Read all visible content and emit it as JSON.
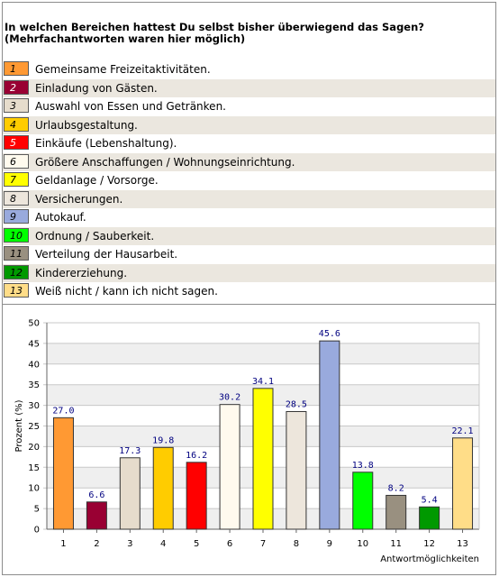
{
  "header": {
    "title_line1": "In welchen Bereichen hattest Du selbst bisher überwiegend das Sagen?",
    "title_line2": "(Mehrfachantworten waren hier möglich)"
  },
  "legend": [
    {
      "num": "1",
      "label": "Gemeinsame Freizeitaktivitäten.",
      "color": "#ff9933",
      "numColor": "#000000"
    },
    {
      "num": "2",
      "label": "Einladung von Gästen.",
      "color": "#990033",
      "numColor": "#ffffff"
    },
    {
      "num": "3",
      "label": "Auswahl von Essen und Getränken.",
      "color": "#e6dccc",
      "numColor": "#000000"
    },
    {
      "num": "4",
      "label": "Urlaubsgestaltung.",
      "color": "#ffcc00",
      "numColor": "#000000"
    },
    {
      "num": "5",
      "label": "Einkäufe (Lebenshaltung).",
      "color": "#ff0000",
      "numColor": "#ffffff"
    },
    {
      "num": "6",
      "label": "Größere Anschaffungen / Wohnungseinrichtung.",
      "color": "#fffaee",
      "numColor": "#000000"
    },
    {
      "num": "7",
      "label": "Geldanlage / Vorsorge.",
      "color": "#ffff00",
      "numColor": "#000000"
    },
    {
      "num": "8",
      "label": "Versicherungen.",
      "color": "#ede6dc",
      "numColor": "#000000"
    },
    {
      "num": "9",
      "label": "Autokauf.",
      "color": "#99aadd",
      "numColor": "#000000"
    },
    {
      "num": "10",
      "label": "Ordnung / Sauberkeit.",
      "color": "#00ff00",
      "numColor": "#000000"
    },
    {
      "num": "11",
      "label": "Verteilung der Hausarbeit.",
      "color": "#999080",
      "numColor": "#000000"
    },
    {
      "num": "12",
      "label": "Kindererziehung.",
      "color": "#009900",
      "numColor": "#000000"
    },
    {
      "num": "13",
      "label": "Weiß nicht / kann ich nicht sagen.",
      "color": "#ffdd88",
      "numColor": "#000000"
    }
  ],
  "chart_data": {
    "type": "bar",
    "categories": [
      "1",
      "2",
      "3",
      "4",
      "5",
      "6",
      "7",
      "8",
      "9",
      "10",
      "11",
      "12",
      "13"
    ],
    "values": [
      27.0,
      6.6,
      17.3,
      19.8,
      16.2,
      30.2,
      34.1,
      28.5,
      45.6,
      13.8,
      8.2,
      5.4,
      22.1
    ],
    "value_labels": [
      "27.0",
      "6.6",
      "17.3",
      "19.8",
      "16.2",
      "30.2",
      "34.1",
      "28.5",
      "45.6",
      "13.8",
      "8.2",
      "5.4",
      "22.1"
    ],
    "colors": [
      "#ff9933",
      "#990033",
      "#e6dccc",
      "#ffcc00",
      "#ff0000",
      "#fffaee",
      "#ffff00",
      "#ede6dc",
      "#99aadd",
      "#00ff00",
      "#999080",
      "#009900",
      "#ffdd88"
    ],
    "ylabel": "Prozent (%)",
    "xlabel": "Antwortmöglichkeiten",
    "ylim": [
      0,
      50
    ],
    "yticks": [
      0,
      5,
      10,
      15,
      20,
      25,
      30,
      35,
      40,
      45,
      50
    ],
    "grid": true
  }
}
